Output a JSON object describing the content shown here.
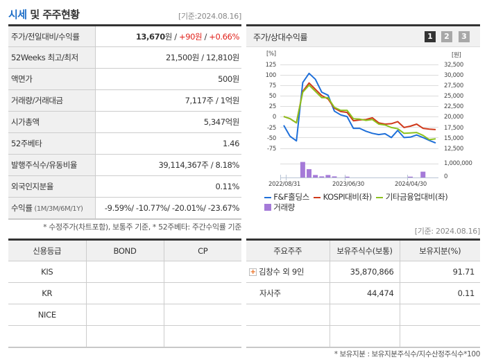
{
  "header": {
    "title_accent": "시세",
    "title_rest": " 및 주주현황",
    "basis_date": "[기준:2024.08.16]"
  },
  "info_table": [
    {
      "label": "주가/전일대비/수익률",
      "price": "13,670",
      "price_unit": "원 / ",
      "change": "+90원",
      "sep": " / ",
      "pct": "+0.66%"
    },
    {
      "label": "52Weeks 최고/최저",
      "value": "21,500원 / 12,810원"
    },
    {
      "label": "액면가",
      "value": "500원"
    },
    {
      "label": "거래량/거래대금",
      "value": "7,117주 / 1억원"
    },
    {
      "label": "시가총액",
      "value": "5,347억원"
    },
    {
      "label": "52주베타",
      "value": "1.46"
    },
    {
      "label": "발행주식수/유동비율",
      "value": "39,114,367주 / 8.18%"
    },
    {
      "label": "외국인지분율",
      "value": "0.11%"
    },
    {
      "label": "수익률",
      "label_sub": " (1M/3M/6M/1Y)",
      "value": "-9.59%/ -10.77%/ -20.01%/ -23.67%"
    }
  ],
  "info_note": "* 수정주가(차트포함), 보통주 기준, * 52주베타: 주간수익률 기준",
  "chart_panel": {
    "title": "주가/상대수익률",
    "pages": [
      "1",
      "2",
      "3"
    ],
    "active_page": "1",
    "left_unit": "[%]",
    "right_unit": "[원]",
    "left_ticks": [
      "125",
      "100",
      "75",
      "50",
      "25",
      "0",
      "-25",
      "-50",
      "-75"
    ],
    "right_ticks": [
      "32,500",
      "30,000",
      "27,500",
      "25,000",
      "22,500",
      "20,000",
      "17,500",
      "15,000",
      "12,500"
    ],
    "volume_ticks": [
      "1,000,000",
      "0"
    ],
    "x_ticks": [
      "2022/08/31",
      "2023/06/30",
      "2024/04/30"
    ],
    "legend": [
      {
        "label": "F&F홀딩스",
        "color": "#1e6fd9"
      },
      {
        "label": "KOSPI대비(좌)",
        "color": "#d0391a"
      },
      {
        "label": "기타금융업대비(좌)",
        "color": "#8cc21e"
      },
      {
        "label": "거래량",
        "color": "#a57ad8"
      }
    ]
  },
  "chart_data": {
    "type": "line",
    "title": "주가/상대수익률",
    "x_ticks": [
      "2022/08/31",
      "2023/06/30",
      "2024/04/30"
    ],
    "y_left": {
      "label": "[%]",
      "range": [
        -75,
        125
      ]
    },
    "y_right": {
      "label": "[원]",
      "range": [
        12500,
        32500
      ]
    },
    "series": [
      {
        "name": "F&F홀딩스",
        "axis": "right",
        "values": [
          17900,
          15300,
          14200,
          28100,
          30300,
          28900,
          25800,
          25100,
          21300,
          20400,
          20000,
          17200,
          17200,
          16500,
          16000,
          15700,
          15900,
          15000,
          16700,
          15000,
          15100,
          15600,
          15000,
          14300,
          13700
        ]
      },
      {
        "name": "KOSPI대비(좌)",
        "axis": "left",
        "values": [
          0,
          -5,
          -15,
          60,
          80,
          65,
          50,
          42,
          20,
          12,
          10,
          -10,
          -8,
          -7,
          -3,
          -15,
          -18,
          -17,
          -12,
          -26,
          -23,
          -18,
          -28,
          -30,
          -31
        ]
      },
      {
        "name": "기타금융업대비(좌)",
        "axis": "left",
        "values": [
          0,
          -5,
          -15,
          58,
          75,
          60,
          45,
          45,
          22,
          15,
          15,
          -5,
          -6,
          -9,
          -7,
          -18,
          -20,
          -26,
          -29,
          -40,
          -39,
          -38,
          -45,
          -55,
          -53
        ]
      },
      {
        "name": "거래량",
        "type": "bar",
        "values": [
          0,
          0,
          0,
          1120000,
          600000,
          180000,
          80000,
          180000,
          80000,
          0,
          60000,
          0,
          0,
          0,
          0,
          0,
          0,
          0,
          0,
          0,
          60000,
          0,
          420000,
          0,
          0
        ]
      }
    ],
    "volume_axis": {
      "ticks": [
        "1,000,000",
        "0"
      ]
    },
    "legend_position": "bottom",
    "grid": true
  },
  "credit_table": {
    "headers": [
      "신용등급",
      "BOND",
      "CP"
    ],
    "rows": [
      [
        "KIS",
        "",
        ""
      ],
      [
        "KR",
        "",
        ""
      ],
      [
        "NICE",
        "",
        ""
      ],
      [
        "",
        "",
        ""
      ]
    ]
  },
  "holders": {
    "basis_date": "[기준: 2024.08.16]",
    "headers": [
      "주요주주",
      "보유주식수(보통)",
      "보유지분(%)"
    ],
    "rows": [
      {
        "name": "김창수 외 9인",
        "expandable": true,
        "shares": "35,870,866",
        "pct": "91.71"
      },
      {
        "name": "자사주",
        "expandable": false,
        "shares": "44,474",
        "pct": "0.11"
      },
      {
        "name": "",
        "shares": "",
        "pct": ""
      },
      {
        "name": "",
        "shares": "",
        "pct": ""
      }
    ],
    "note": "* 보유지분 : 보유지분주식수/지수산정주식수*100"
  }
}
